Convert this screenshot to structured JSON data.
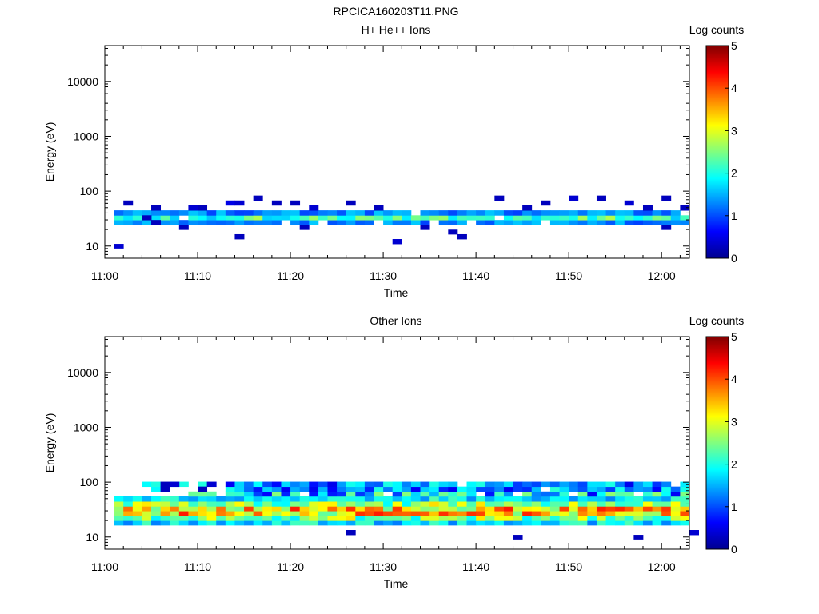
{
  "figure": {
    "title": "RPCICA160203T11.PNG"
  },
  "colors": {
    "axis": "#000000",
    "background": "#ffffff"
  },
  "chart_data": [
    {
      "type": "heatmap",
      "title": "H+ He++ Ions",
      "xlabel": "Time",
      "ylabel": "Energy (eV)",
      "y_scale": "log",
      "xlim": [
        "11:00",
        "12:03"
      ],
      "ylim": [
        6,
        45000
      ],
      "x_ticks": [
        "11:00",
        "11:10",
        "11:20",
        "11:30",
        "11:40",
        "11:50",
        "12:00"
      ],
      "y_ticks": [
        "10",
        "100",
        "1000",
        "10000"
      ],
      "colorbar": {
        "label": "Log counts",
        "min": 0,
        "max": 5,
        "ticks": [
          "0",
          "1",
          "2",
          "3",
          "4",
          "5"
        ]
      },
      "time_bin_minutes": 1,
      "energy_bins_eV": [
        10,
        12,
        15,
        18,
        22,
        27,
        33,
        40,
        50,
        61,
        75,
        92
      ],
      "band": {
        "from_minute": 1,
        "to_minute": 63,
        "rows": [
          5,
          6,
          7
        ],
        "peak_log_counts": 2.3
      },
      "scatter_points": [
        [
          1,
          0,
          0.4
        ],
        [
          2,
          9,
          0.3
        ],
        [
          4,
          6,
          0.3
        ],
        [
          5,
          5,
          0.3
        ],
        [
          5,
          8,
          0.3
        ],
        [
          8,
          4,
          0.3
        ],
        [
          9,
          8,
          0.4
        ],
        [
          10,
          8,
          0.3
        ],
        [
          13,
          9,
          0.5
        ],
        [
          14,
          2,
          0.3
        ],
        [
          14,
          9,
          0.4
        ],
        [
          16,
          10,
          0.3
        ],
        [
          18,
          9,
          0.3
        ],
        [
          20,
          9,
          0.3
        ],
        [
          21,
          4,
          0.3
        ],
        [
          22,
          8,
          0.4
        ],
        [
          26,
          9,
          0.3
        ],
        [
          29,
          8,
          0.3
        ],
        [
          31,
          1,
          0.4
        ],
        [
          34,
          4,
          0.3
        ],
        [
          37,
          3,
          0.3
        ],
        [
          38,
          2,
          0.3
        ],
        [
          42,
          10,
          0.3
        ],
        [
          45,
          8,
          0.3
        ],
        [
          47,
          9,
          0.3
        ],
        [
          50,
          10,
          0.4
        ],
        [
          53,
          10,
          0.3
        ],
        [
          56,
          9,
          0.4
        ],
        [
          58,
          8,
          0.3
        ],
        [
          60,
          10,
          0.3
        ],
        [
          60,
          4,
          0.3
        ],
        [
          62,
          8,
          0.3
        ]
      ]
    },
    {
      "type": "heatmap",
      "title": "Other Ions",
      "xlabel": "Time",
      "ylabel": "Energy (eV)",
      "y_scale": "log",
      "xlim": [
        "11:00",
        "12:03"
      ],
      "ylim": [
        6,
        45000
      ],
      "x_ticks": [
        "11:00",
        "11:10",
        "11:20",
        "11:30",
        "11:40",
        "11:50",
        "12:00"
      ],
      "y_ticks": [
        "10",
        "100",
        "1000",
        "10000"
      ],
      "colorbar": {
        "label": "Log counts",
        "min": 0,
        "max": 5,
        "ticks": [
          "0",
          "1",
          "2",
          "3",
          "4",
          "5"
        ]
      },
      "time_bin_minutes": 1,
      "energy_bins_eV": [
        10,
        12,
        15,
        18,
        22,
        27,
        33,
        40,
        50,
        61,
        75,
        92
      ],
      "band": {
        "from_minute": 1,
        "to_minute": 63,
        "rows": [
          3,
          4,
          5,
          6,
          7,
          8
        ],
        "peak_log_counts": 4.0,
        "upper_rows": [
          9,
          10,
          11
        ],
        "upper_from_minute": 13
      },
      "scatter_points": [
        [
          6,
          10,
          0.3
        ],
        [
          6,
          11,
          0.3
        ],
        [
          7,
          11,
          0.4
        ],
        [
          10,
          10,
          0.3
        ],
        [
          11,
          11,
          0.4
        ],
        [
          26,
          1,
          0.3
        ],
        [
          44,
          0,
          0.3
        ],
        [
          57,
          0,
          0.3
        ],
        [
          63,
          1,
          0.4
        ]
      ]
    }
  ]
}
